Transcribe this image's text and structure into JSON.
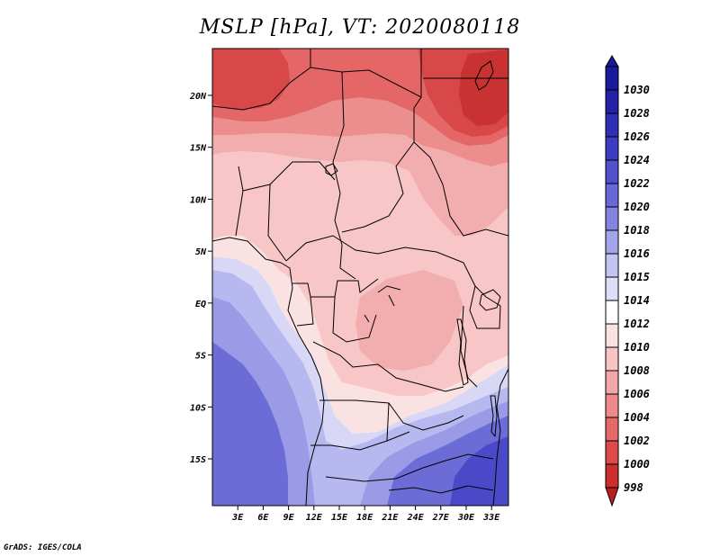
{
  "title": "MSLP [hPa], VT: 2020080118",
  "credit": "GrADS: IGES/COLA",
  "map": {
    "lon_range": [
      0,
      35
    ],
    "lat_range": [
      -19.5,
      24.5
    ],
    "lat_ticks": [
      {
        "value": 20,
        "label": "20N"
      },
      {
        "value": 15,
        "label": "15N"
      },
      {
        "value": 10,
        "label": "10N"
      },
      {
        "value": 5,
        "label": "5N"
      },
      {
        "value": 0,
        "label": "EQ"
      },
      {
        "value": -5,
        "label": "5S"
      },
      {
        "value": -10,
        "label": "10S"
      },
      {
        "value": -15,
        "label": "15S"
      }
    ],
    "lon_ticks": [
      {
        "value": 3,
        "label": "3E"
      },
      {
        "value": 6,
        "label": "6E"
      },
      {
        "value": 9,
        "label": "9E"
      },
      {
        "value": 12,
        "label": "12E"
      },
      {
        "value": 15,
        "label": "15E"
      },
      {
        "value": 18,
        "label": "18E"
      },
      {
        "value": 21,
        "label": "21E"
      },
      {
        "value": 24,
        "label": "24E"
      },
      {
        "value": 27,
        "label": "27E"
      },
      {
        "value": 30,
        "label": "30E"
      },
      {
        "value": 33,
        "label": "33E"
      }
    ]
  },
  "colorbar": {
    "levels": [
      {
        "label": "1030",
        "color": "#1a1a9c"
      },
      {
        "label": "1028",
        "color": "#2323a8"
      },
      {
        "label": "1026",
        "color": "#2e2eb6"
      },
      {
        "label": "1024",
        "color": "#3c3cc2"
      },
      {
        "label": "1022",
        "color": "#5050cc"
      },
      {
        "label": "1020",
        "color": "#6868d8"
      },
      {
        "label": "1018",
        "color": "#8484e0"
      },
      {
        "label": "1016",
        "color": "#a4a4ea"
      },
      {
        "label": "1015",
        "color": "#c4c4f2"
      },
      {
        "label": "1014",
        "color": "#dedef8"
      },
      {
        "label": "1012",
        "color": "#ffffff"
      },
      {
        "label": "1010",
        "color": "#fbe2e2"
      },
      {
        "label": "1008",
        "color": "#f8c4c4"
      },
      {
        "label": "1006",
        "color": "#f2a8a8"
      },
      {
        "label": "1004",
        "color": "#ec8a8a"
      },
      {
        "label": "1002",
        "color": "#e66a6a"
      },
      {
        "label": "1000",
        "color": "#dc4a4a"
      },
      {
        "label": "998",
        "color": "#cc2e2e"
      }
    ],
    "bottom_color": "#b82020"
  },
  "field_colors": {
    "high_5": "#4a4ac8",
    "high_4": "#6c6cd6",
    "high_3": "#9a9ae6",
    "high_2": "#b8b8f0",
    "high_1": "#d8d8f6",
    "neutral": "#ffffff",
    "low_1": "#fbe2e2",
    "low_2": "#f8c6c6",
    "low_3": "#f2aeae",
    "low_4": "#ec8e8e",
    "low_5": "#e46666",
    "low_6": "#d84848",
    "low_7": "#c83232"
  }
}
